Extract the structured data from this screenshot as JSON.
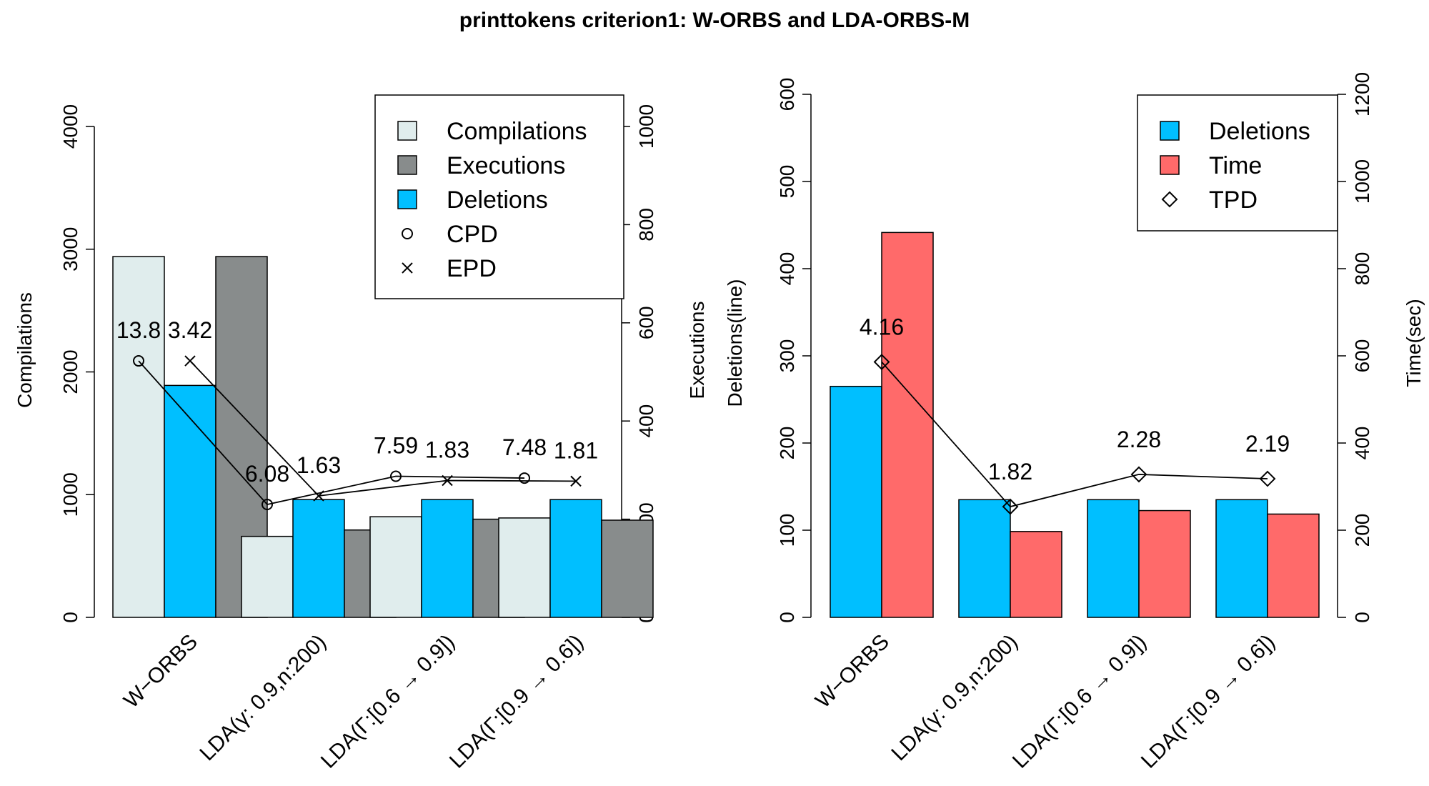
{
  "title": "printtokens criterion1: W-ORBS and LDA-ORBS-M",
  "colors": {
    "compilations": "#e0eded",
    "executions": "#888c8c",
    "deletions": "#00bfff",
    "time": "#ff6a6a",
    "line": "#000000"
  },
  "chart_data": [
    {
      "type": "bar",
      "categories": [
        "W−ORBS",
        "LDA(γ: 0.9,n:200)",
        "LDA(Γ:[0.6 → 0.9])",
        "LDA(Γ:[0.9 → 0.6])"
      ],
      "ylabel_left": "Compilations",
      "ylabel_right": "Executions",
      "ylim_left": [
        0,
        4000
      ],
      "yticks_left": [
        "0",
        "1000",
        "2000",
        "3000",
        "4000"
      ],
      "ylim_right": [
        0,
        1000
      ],
      "yticks_right": [
        "0",
        "200",
        "400",
        "600",
        "800",
        "1000"
      ],
      "series": [
        {
          "name": "Compilations",
          "axis": "left",
          "values": [
            2940,
            660,
            820,
            810
          ]
        },
        {
          "name": "Deletions",
          "axis": "left",
          "values": [
            1890,
            960,
            960,
            960
          ]
        },
        {
          "name": "Executions",
          "axis": "right",
          "values": [
            735,
            178,
            200,
            198
          ]
        }
      ],
      "lines": [
        {
          "name": "CPD",
          "marker": "circle",
          "values": [
            2090,
            920,
            1150,
            1135
          ],
          "labels": [
            "13.8",
            "6.08",
            "7.59",
            "7.48"
          ]
        },
        {
          "name": "EPD",
          "marker": "cross",
          "values": [
            2090,
            990,
            1115,
            1110
          ],
          "labels": [
            "3.42",
            "1.63",
            "1.83",
            "1.81"
          ]
        }
      ],
      "legend": [
        "Compilations",
        "Executions",
        "Deletions",
        "CPD",
        "EPD"
      ],
      "legend_position": "top-right"
    },
    {
      "type": "bar",
      "categories": [
        "W−ORBS",
        "LDA(γ: 0.9,n:200)",
        "LDA(Γ:[0.6 → 0.9])",
        "LDA(Γ:[0.9 → 0.6])"
      ],
      "ylabel_left": "Deletions(line)",
      "ylabel_right": "Time(sec)",
      "ylim_left": [
        0,
        600
      ],
      "yticks_left": [
        "0",
        "100",
        "200",
        "300",
        "400",
        "500",
        "600"
      ],
      "ylim_right": [
        0,
        1200
      ],
      "yticks_right": [
        "0",
        "200",
        "400",
        "600",
        "800",
        "1000",
        "1200"
      ],
      "series": [
        {
          "name": "Deletions",
          "axis": "left",
          "values": [
            265,
            135,
            135,
            135
          ]
        },
        {
          "name": "Time",
          "axis": "right",
          "values": [
            883,
            197,
            245,
            237
          ]
        }
      ],
      "lines": [
        {
          "name": "TPD",
          "marker": "diamond",
          "values": [
            293,
            127,
            164,
            159
          ],
          "labels": [
            "4.16",
            "1.82",
            "2.28",
            "2.19"
          ]
        }
      ],
      "legend": [
        "Deletions",
        "Time",
        "TPD"
      ],
      "legend_position": "top-right"
    }
  ]
}
